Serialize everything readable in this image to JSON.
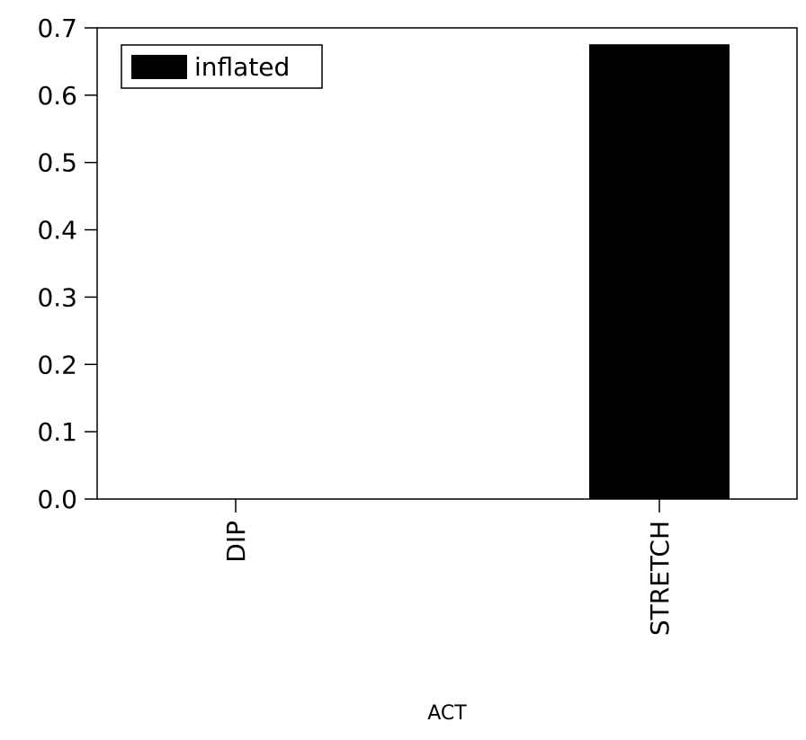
{
  "chart_data": {
    "type": "bar",
    "categories": [
      "DIP",
      "STRETCH"
    ],
    "series": [
      {
        "name": "inflated",
        "values": [
          0.0,
          0.675
        ],
        "color": "#000000"
      }
    ],
    "xlabel": "ACT",
    "ylabel": "",
    "ylim": [
      0.0,
      0.7
    ],
    "yticks": [
      "0.0",
      "0.1",
      "0.2",
      "0.3",
      "0.4",
      "0.5",
      "0.6",
      "0.7"
    ],
    "grid": false,
    "legend_position": "top-left"
  }
}
